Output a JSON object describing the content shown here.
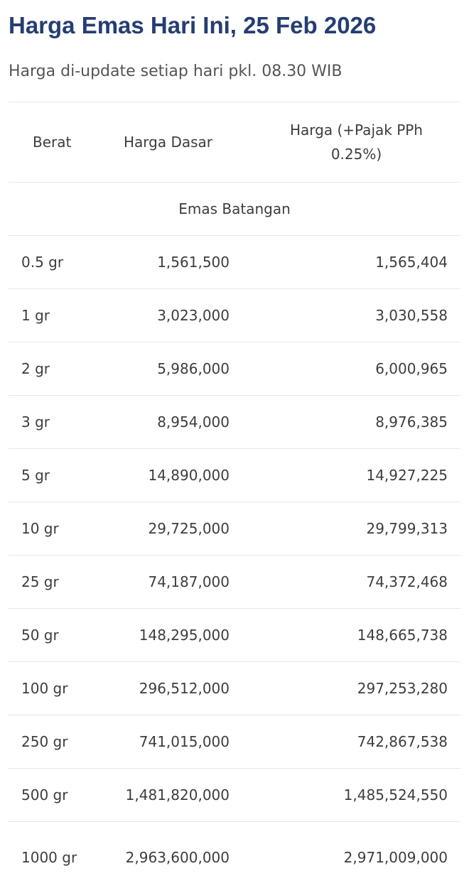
{
  "page": {
    "title": "Harga Emas Hari Ini, 25 Feb 2026",
    "subtitle": "Harga di-update setiap hari pkl. 08.30 WIB"
  },
  "table": {
    "headers": {
      "weight": "Berat",
      "base_price": "Harga Dasar",
      "price_with_tax": "Harga (+Pajak PPh 0.25%)"
    },
    "section_label": "Emas Batangan",
    "rows": [
      {
        "weight": "0.5 gr",
        "base": "1,561,500",
        "tax": "1,565,404"
      },
      {
        "weight": "1 gr",
        "base": "3,023,000",
        "tax": "3,030,558"
      },
      {
        "weight": "2 gr",
        "base": "5,986,000",
        "tax": "6,000,965"
      },
      {
        "weight": "3 gr",
        "base": "8,954,000",
        "tax": "8,976,385"
      },
      {
        "weight": "5 gr",
        "base": "14,890,000",
        "tax": "14,927,225"
      },
      {
        "weight": "10 gr",
        "base": "29,725,000",
        "tax": "29,799,313"
      },
      {
        "weight": "25 gr",
        "base": "74,187,000",
        "tax": "74,372,468"
      },
      {
        "weight": "50 gr",
        "base": "148,295,000",
        "tax": "148,665,738"
      },
      {
        "weight": "100 gr",
        "base": "296,512,000",
        "tax": "297,253,280"
      },
      {
        "weight": "250 gr",
        "base": "741,015,000",
        "tax": "742,867,538"
      },
      {
        "weight": "500 gr",
        "base": "1,481,820,000",
        "tax": "1,485,524,550"
      },
      {
        "weight": "1000 gr",
        "base": "2,963,600,000",
        "tax": "2,971,009,000"
      }
    ]
  }
}
